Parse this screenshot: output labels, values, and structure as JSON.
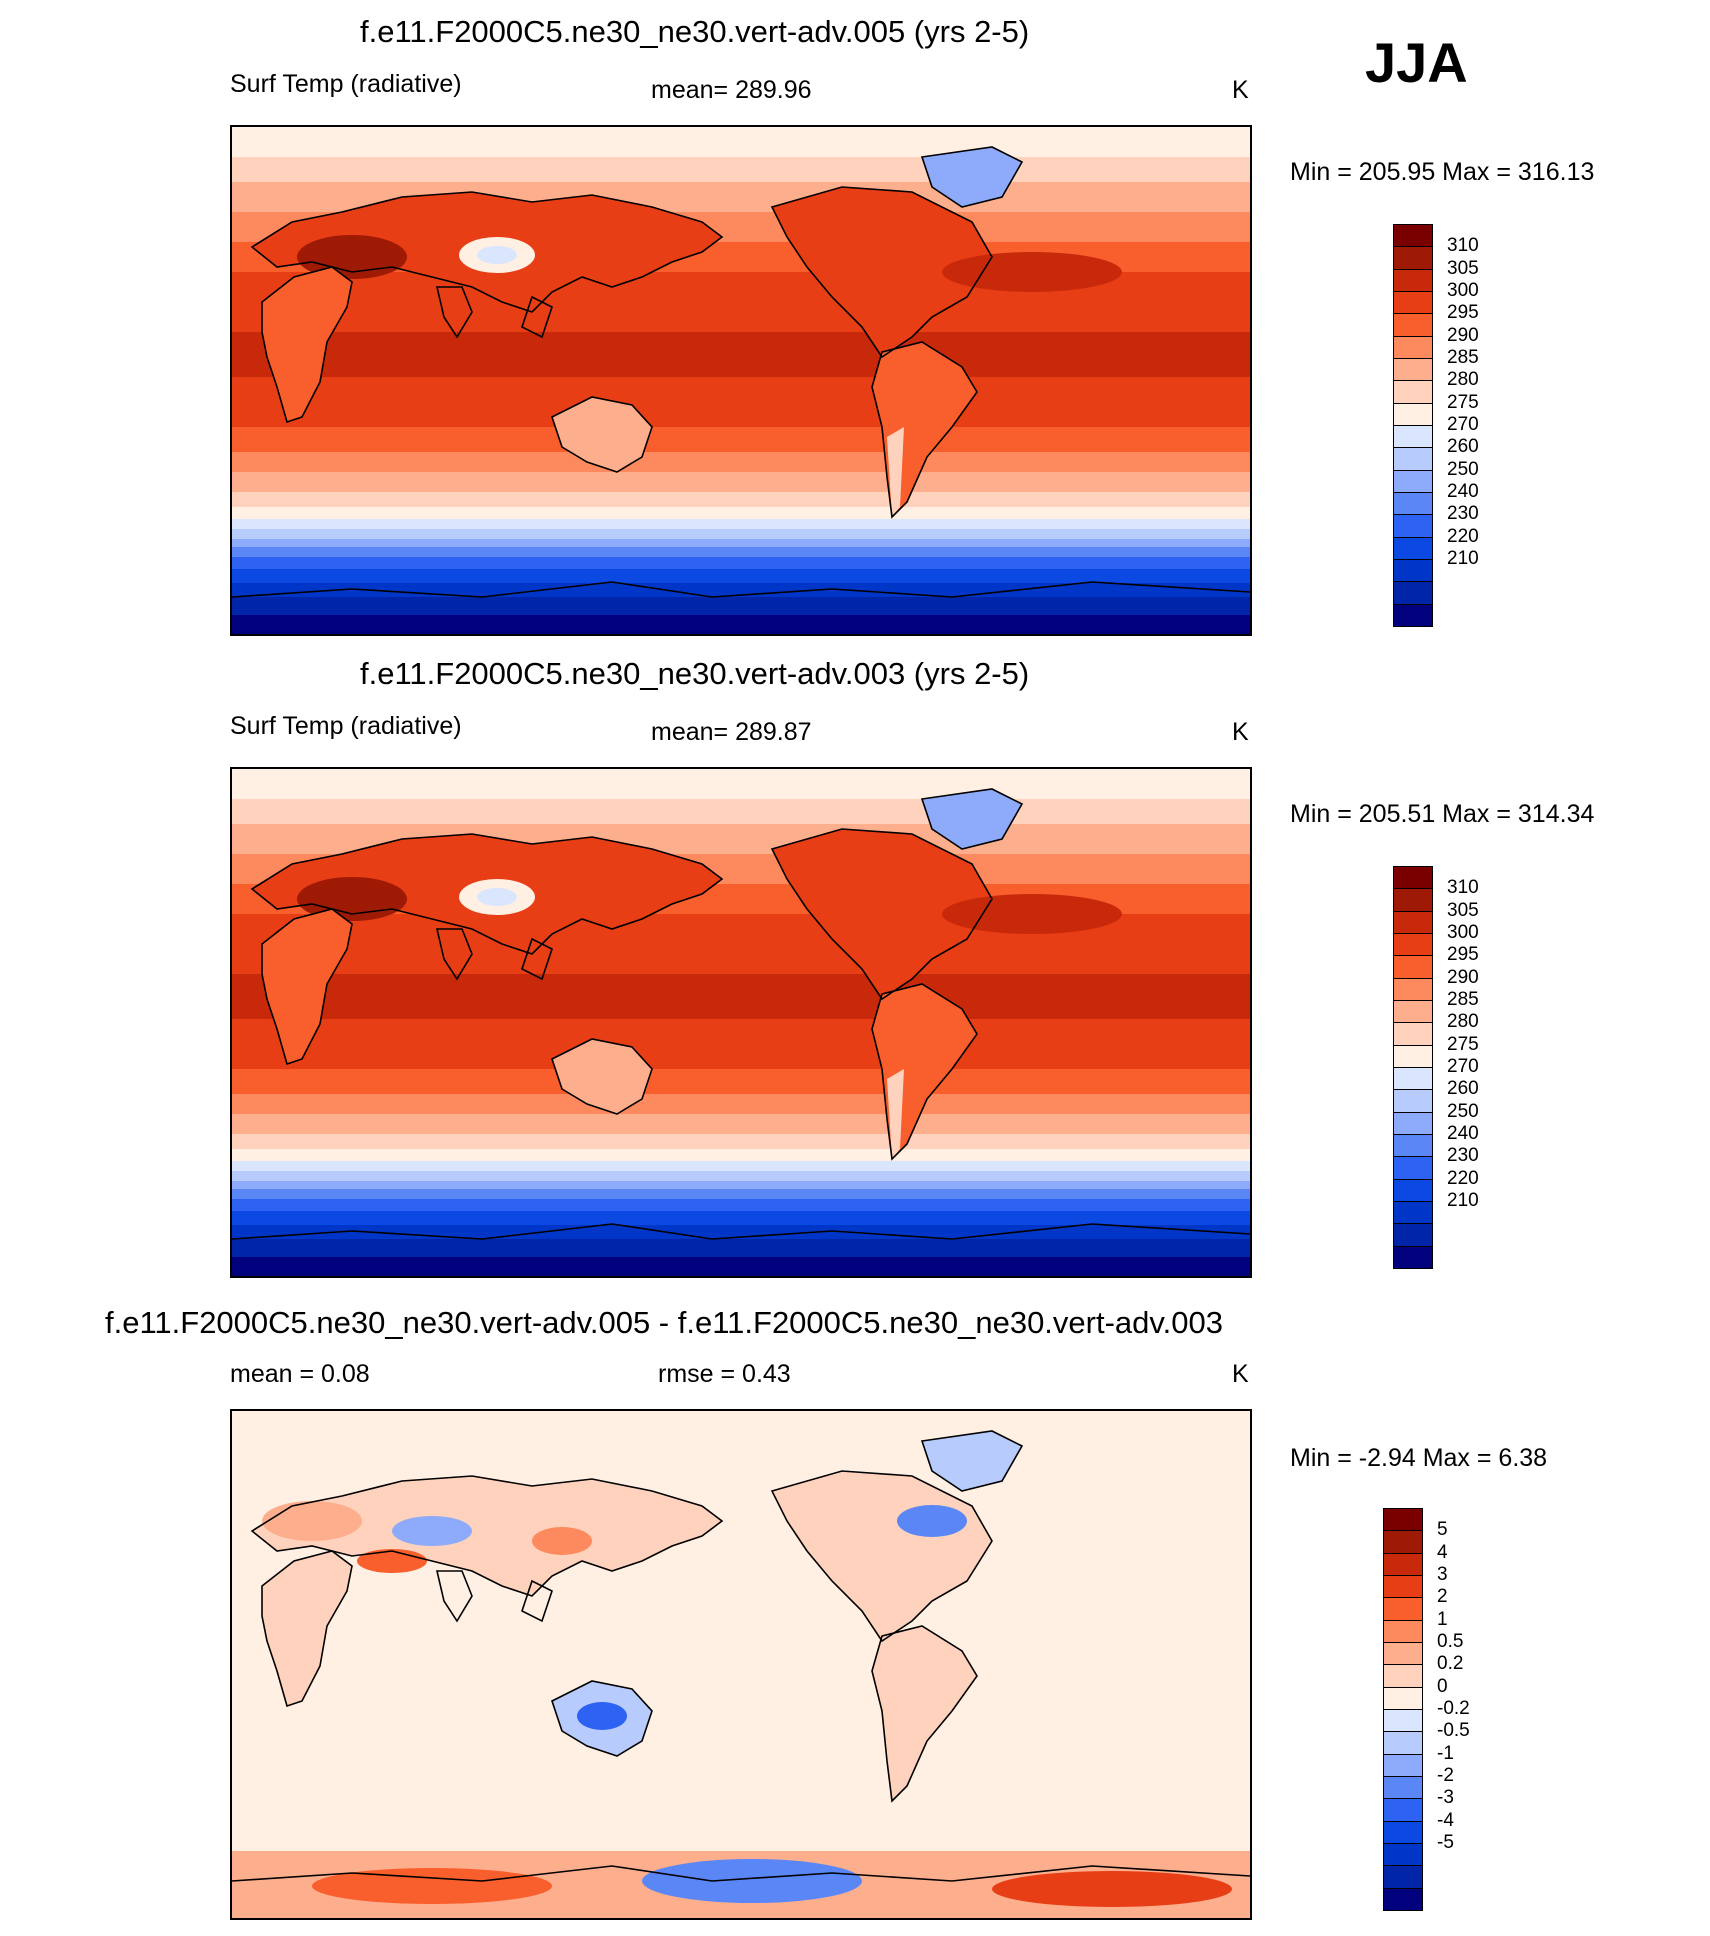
{
  "season": "JJA",
  "colors": {
    "temp": [
      "#01007d",
      "#0025a8",
      "#0036c8",
      "#0c49e2",
      "#2d62f2",
      "#5b86f6",
      "#8eaafa",
      "#b7cbfc",
      "#dae6fe",
      "#fff0e3",
      "#fed2bc",
      "#fdae8d",
      "#fd8a5e",
      "#f95e2d",
      "#e83e15",
      "#c8290b",
      "#9f1a05",
      "#7a0000"
    ],
    "diff": [
      "#01007d",
      "#0025a8",
      "#0036c8",
      "#0c49e2",
      "#2d62f2",
      "#5b86f6",
      "#8eaafa",
      "#b7cbfc",
      "#dae6fe",
      "#fff0e3",
      "#fed2bc",
      "#fdae8d",
      "#fd8a5e",
      "#f95e2d",
      "#e83e15",
      "#c8290b",
      "#9f1a05",
      "#7a0000"
    ]
  },
  "panels": [
    {
      "title": "f.e11.F2000C5.ne30_ne30.vert-adv.005 (yrs 2-5)",
      "left_label": "Surf Temp (radiative)",
      "center_label": "mean= 289.96",
      "units": "K",
      "minmax": "Min = 205.95 Max = 316.13"
    },
    {
      "title": "f.e11.F2000C5.ne30_ne30.vert-adv.003 (yrs 2-5)",
      "left_label": "Surf Temp (radiative)",
      "center_label": "mean= 289.87",
      "units": "K",
      "minmax": "Min = 205.51 Max = 314.34"
    },
    {
      "title": "f.e11.F2000C5.ne30_ne30.vert-adv.005 - f.e11.F2000C5.ne30_ne30.vert-adv.003",
      "left_label": "mean =   0.08",
      "center_label": "rmse =   0.43",
      "units": "K",
      "minmax": "Min =  -2.94 Max =   6.38"
    }
  ],
  "chart_data": [
    {
      "type": "heatmap",
      "title": "f.e11.F2000C5.ne30_ne30.vert-adv.005 (yrs 2-5)",
      "variable": "Surf Temp (radiative)",
      "units": "K",
      "mean": 289.96,
      "min": 205.95,
      "max": 316.13,
      "colorbar_levels": [
        "310",
        "305",
        "300",
        "295",
        "290",
        "285",
        "280",
        "275",
        "270",
        "260",
        "250",
        "240",
        "230",
        "220",
        "210"
      ]
    },
    {
      "type": "heatmap",
      "title": "f.e11.F2000C5.ne30_ne30.vert-adv.003 (yrs 2-5)",
      "variable": "Surf Temp (radiative)",
      "units": "K",
      "mean": 289.87,
      "min": 205.51,
      "max": 314.34,
      "colorbar_levels": [
        "310",
        "305",
        "300",
        "295",
        "290",
        "285",
        "280",
        "275",
        "270",
        "260",
        "250",
        "240",
        "230",
        "220",
        "210"
      ]
    },
    {
      "type": "heatmap",
      "title": "f.e11.F2000C5.ne30_ne30.vert-adv.005 - f.e11.F2000C5.ne30_ne30.vert-adv.003",
      "units": "K",
      "mean": 0.08,
      "rmse": 0.43,
      "min": -2.94,
      "max": 6.38,
      "colorbar_levels": [
        "5",
        "4",
        "3",
        "2",
        "1",
        "0.5",
        "0.2",
        "0",
        "-0.2",
        "-0.5",
        "-1",
        "-2",
        "-3",
        "-4",
        "-5"
      ]
    }
  ]
}
